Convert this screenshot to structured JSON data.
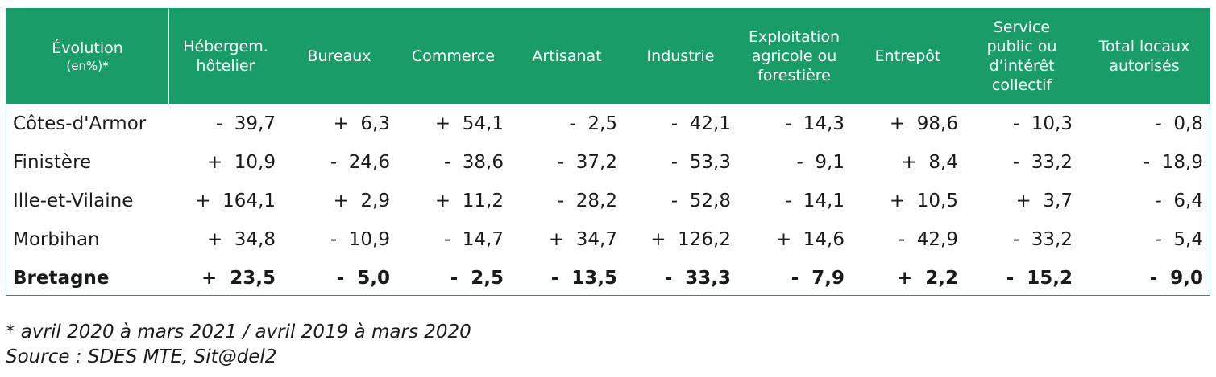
{
  "colors": {
    "header_bg": "#1a9c68",
    "header_text": "#ffffff",
    "text": "#1a1a1a"
  },
  "table": {
    "header_first": {
      "title": "Évolution",
      "sub": "(en%)*"
    },
    "headers": [
      "Hébergem.\nhôtelier",
      "Bureaux",
      "Commerce",
      "Artisanat",
      "Industrie",
      "Exploitation\nagricole ou\nforestière",
      "Entrepôt",
      "Service\npublic ou\nd’intérêt\ncollectif",
      "Total locaux\nautorisés"
    ],
    "rows": [
      {
        "label": "Côtes-d'Armor",
        "values": [
          "-  39,7",
          "+  6,3",
          "+  54,1",
          "-  2,5",
          "-  42,1",
          "-  14,3",
          "+  98,6",
          "-  10,3",
          "-  0,8"
        ]
      },
      {
        "label": "Finistère",
        "values": [
          "+  10,9",
          "-  24,6",
          "-  38,6",
          "-  37,2",
          "-  53,3",
          "-  9,1",
          "+  8,4",
          "-  33,2",
          "-  18,9"
        ]
      },
      {
        "label": "Ille-et-Vilaine",
        "values": [
          "+  164,1",
          "+  2,9",
          "+  11,2",
          "-  28,2",
          "-  52,8",
          "-  14,1",
          "+  10,5",
          "+  3,7",
          "-  6,4"
        ]
      },
      {
        "label": "Morbihan",
        "values": [
          "+  34,8",
          "-  10,9",
          "-  14,7",
          "+  34,7",
          "+  126,2",
          "+  14,6",
          "-  42,9",
          "-  33,2",
          "-  5,4"
        ]
      },
      {
        "label": "Bretagne",
        "values": [
          "+  23,5",
          "-  5,0",
          "-  2,5",
          "-  13,5",
          "-  33,3",
          "-  7,9",
          "+  2,2",
          "-  15,2",
          "-  9,0"
        ]
      }
    ]
  },
  "notes": {
    "period": "* avril 2020 à mars 2021 / avril 2019 à mars 2020",
    "source": "Source : SDES MTE, Sit@del2"
  }
}
